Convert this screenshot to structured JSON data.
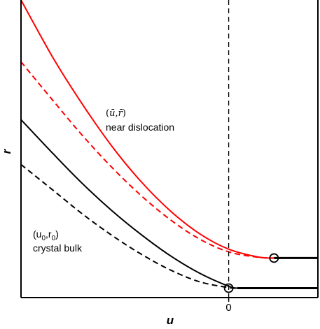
{
  "chart_data": {
    "type": "line",
    "xlabel": "u",
    "ylabel": "r",
    "xlim": [
      -7.1,
      3.05
    ],
    "ylim": [
      -0.35,
      10.72
    ],
    "x_ticks": [
      {
        "value": 0,
        "label": "0"
      }
    ],
    "vline": {
      "x": 0,
      "style": "dashed",
      "color": "#000000"
    },
    "grid": false,
    "legend": "none",
    "series": [
      {
        "color": "#ff0000",
        "style": "solid",
        "points": [
          [
            -7.1,
            10.72
          ],
          [
            -6,
            8.56
          ],
          [
            -5,
            6.84
          ],
          [
            -4,
            5.29
          ],
          [
            -3,
            3.97
          ],
          [
            -2,
            2.88
          ],
          [
            -1,
            2.03
          ],
          [
            0,
            1.45
          ],
          [
            1,
            1.16
          ],
          [
            1.55,
            1.12
          ],
          [
            3.05,
            1.12
          ]
        ]
      },
      {
        "color": "#ff0000",
        "style": "dashed",
        "points": [
          [
            -7.1,
            8.42
          ],
          [
            -6,
            6.97
          ],
          [
            -5,
            5.68
          ],
          [
            -4,
            4.5
          ],
          [
            -3,
            3.45
          ],
          [
            -2,
            2.55
          ],
          [
            -1,
            1.83
          ],
          [
            0,
            1.35
          ],
          [
            1,
            1.15
          ],
          [
            1.55,
            1.12
          ]
        ]
      },
      {
        "color": "#000000",
        "style": "solid",
        "points": [
          [
            -7.1,
            6.27
          ],
          [
            -6,
            5.0
          ],
          [
            -5,
            3.89
          ],
          [
            -4,
            2.89
          ],
          [
            -3,
            2.0
          ],
          [
            -2,
            1.21
          ],
          [
            -1,
            0.56
          ],
          [
            0,
            0.07
          ],
          [
            0.3,
            0
          ],
          [
            3.05,
            0
          ]
        ]
      },
      {
        "color": "#000000",
        "style": "dashed",
        "points": [
          [
            -7.1,
            4.6
          ],
          [
            -6,
            3.64
          ],
          [
            -5,
            2.76
          ],
          [
            -4,
            1.97
          ],
          [
            -3,
            1.27
          ],
          [
            -2,
            0.68
          ],
          [
            -1,
            0.24
          ],
          [
            0,
            0.02
          ],
          [
            0.3,
            0
          ]
        ]
      }
    ],
    "markers": [
      {
        "x": 0,
        "y": 0,
        "shape": "open-circle",
        "color": "#000000"
      },
      {
        "x": 1.55,
        "y": 1.12,
        "shape": "open-circle",
        "color": "#000000"
      }
    ],
    "annotations": [
      {
        "lines": [
          "(ū,r̄)",
          "near dislocation"
        ],
        "color": "#000000",
        "x": -4.35,
        "y": 5.6
      },
      {
        "lines": [
          "(u0,r0)",
          "crystal bulk"
        ],
        "color": "#000000",
        "x": -6.85,
        "y": 1.85
      }
    ],
    "label_parts": {
      "bulk_u": "u",
      "bulk_r": "r",
      "bulk_sub": "0",
      "near_u": "ū",
      "near_r": "r̄",
      "sep": ","
    }
  }
}
